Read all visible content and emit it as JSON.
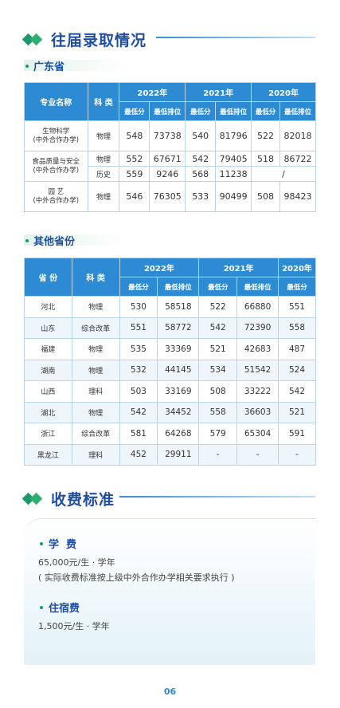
{
  "section1": {
    "title": "往届录取情况"
  },
  "guangdong": {
    "title": "广东省",
    "h_major": "专业名称",
    "h_cat": "科 类",
    "years": [
      "2022年",
      "2021年",
      "2020年"
    ],
    "sub_min": "最低分",
    "sub_rank": "最低排位",
    "rows": [
      {
        "major": "生物科学\n(中外合作办学)",
        "cat": "物理",
        "v": [
          "548",
          "73738",
          "540",
          "81796",
          "522",
          "82018"
        ]
      },
      {
        "major": "食品质量与安全\n(中外合作办学)",
        "cat": "物理",
        "v": [
          "552",
          "67671",
          "542",
          "79405",
          "518",
          "86722"
        ]
      },
      {
        "cat": "历史",
        "v": [
          "559",
          "9246",
          "568",
          "11238"
        ],
        "na": "/"
      },
      {
        "major": "园 艺\n(中外合作办学)",
        "cat": "物理",
        "v": [
          "546",
          "76305",
          "533",
          "90499",
          "508",
          "98423"
        ]
      }
    ]
  },
  "others": {
    "title": "其他省份",
    "h_prov": "省 份",
    "h_cat": "科 类",
    "years": [
      "2022年",
      "2021年",
      "2020年"
    ],
    "sub_min": "最低分",
    "sub_rank": "最低排位",
    "rows": [
      {
        "prov": "河北",
        "cat": "物理",
        "v": [
          "530",
          "58518",
          "522",
          "66880",
          "551"
        ]
      },
      {
        "prov": "山东",
        "cat": "综合改革",
        "v": [
          "551",
          "58772",
          "542",
          "72390",
          "558"
        ]
      },
      {
        "prov": "福建",
        "cat": "物理",
        "v": [
          "535",
          "33369",
          "521",
          "42683",
          "487"
        ]
      },
      {
        "prov": "湖南",
        "cat": "物理",
        "v": [
          "532",
          "44145",
          "534",
          "51542",
          "524"
        ]
      },
      {
        "prov": "山西",
        "cat": "理科",
        "v": [
          "503",
          "33169",
          "508",
          "33222",
          "542"
        ]
      },
      {
        "prov": "湖北",
        "cat": "物理",
        "v": [
          "542",
          "34452",
          "558",
          "36603",
          "521"
        ]
      },
      {
        "prov": "浙江",
        "cat": "综合改革",
        "v": [
          "581",
          "64268",
          "579",
          "65304",
          "591"
        ]
      },
      {
        "prov": "黑龙江",
        "cat": "理科",
        "v": [
          "452",
          "29911",
          "-",
          "-",
          "-"
        ]
      }
    ]
  },
  "section2": {
    "title": "收费标准"
  },
  "fees": {
    "tuition_label": "学  费",
    "tuition_value": "65,000元/生 · 学年",
    "tuition_note": "( 实际收费标准按上级中外合作办学相关要求执行 )",
    "lodging_label": "住宿费",
    "lodging_value": "1,500元/生 · 学年"
  },
  "page_number": "06"
}
